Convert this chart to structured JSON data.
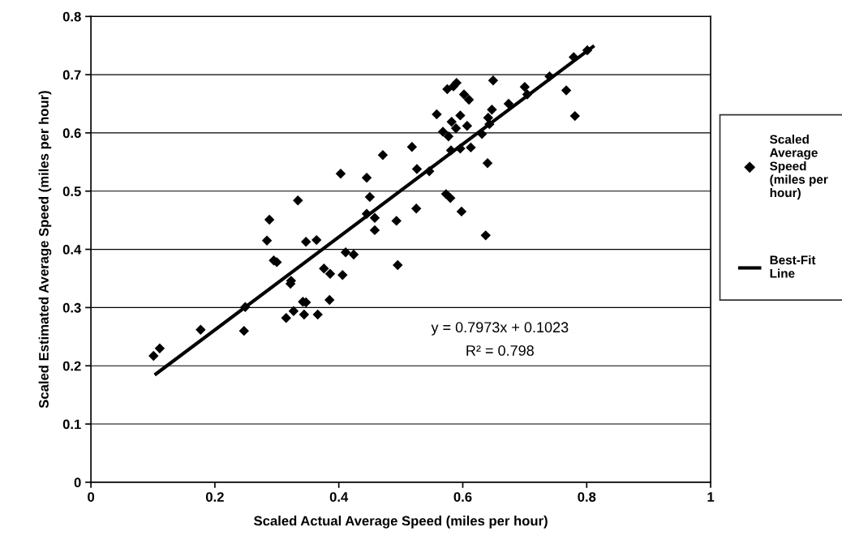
{
  "chart_data": {
    "type": "scatter",
    "xlabel": "Scaled Actual Average Speed (miles per hour)",
    "ylabel": "Scaled Estimated Average Speed (miles per hour)",
    "xlim": [
      0,
      1
    ],
    "xticks": [
      0,
      0.2,
      0.4,
      0.6,
      0.8,
      1
    ],
    "ylim": [
      0,
      0.8
    ],
    "yticks": [
      0,
      0.1,
      0.2,
      0.3,
      0.4,
      0.5,
      0.6,
      0.7,
      0.8
    ],
    "grid": "y",
    "legend": "right",
    "series": [
      {
        "name": "Scaled Average Speed (miles per hour)",
        "marker": "diamond",
        "color": "#000000",
        "x": [
          0.101,
          0.111,
          0.177,
          0.247,
          0.249,
          0.284,
          0.288,
          0.295,
          0.3,
          0.322,
          0.323,
          0.315,
          0.327,
          0.342,
          0.347,
          0.344,
          0.366,
          0.385,
          0.347,
          0.364,
          0.334,
          0.376,
          0.386,
          0.406,
          0.411,
          0.424,
          0.45,
          0.445,
          0.458,
          0.458,
          0.403,
          0.471,
          0.518,
          0.445,
          0.526,
          0.546,
          0.493,
          0.525,
          0.495,
          0.573,
          0.58,
          0.598,
          0.637,
          0.64,
          0.581,
          0.596,
          0.613,
          0.631,
          0.568,
          0.577,
          0.589,
          0.607,
          0.582,
          0.643,
          0.59,
          0.649,
          0.602,
          0.61,
          0.596,
          0.647,
          0.641,
          0.674,
          0.7,
          0.704,
          0.74,
          0.767,
          0.781,
          0.779,
          0.575,
          0.585,
          0.801,
          0.558
        ],
        "values": [
          0.217,
          0.23,
          0.262,
          0.26,
          0.301,
          0.415,
          0.451,
          0.381,
          0.378,
          0.341,
          0.346,
          0.282,
          0.294,
          0.31,
          0.309,
          0.288,
          0.288,
          0.313,
          0.413,
          0.416,
          0.484,
          0.367,
          0.358,
          0.356,
          0.395,
          0.391,
          0.49,
          0.461,
          0.454,
          0.433,
          0.53,
          0.562,
          0.576,
          0.523,
          0.538,
          0.534,
          0.449,
          0.47,
          0.373,
          0.495,
          0.488,
          0.465,
          0.424,
          0.548,
          0.57,
          0.573,
          0.575,
          0.598,
          0.602,
          0.594,
          0.608,
          0.612,
          0.619,
          0.615,
          0.686,
          0.69,
          0.666,
          0.657,
          0.63,
          0.64,
          0.626,
          0.65,
          0.679,
          0.666,
          0.697,
          0.673,
          0.629,
          0.73,
          0.675,
          0.68,
          0.742,
          0.632
        ]
      },
      {
        "name": "Best-Fit Line",
        "type": "line",
        "color": "#000000",
        "x": [
          0.105,
          0.81
        ],
        "values": [
          0.186,
          0.748
        ]
      }
    ],
    "annotations": [
      "y = 0.7973x + 0.1023",
      "R² = 0.798"
    ]
  }
}
